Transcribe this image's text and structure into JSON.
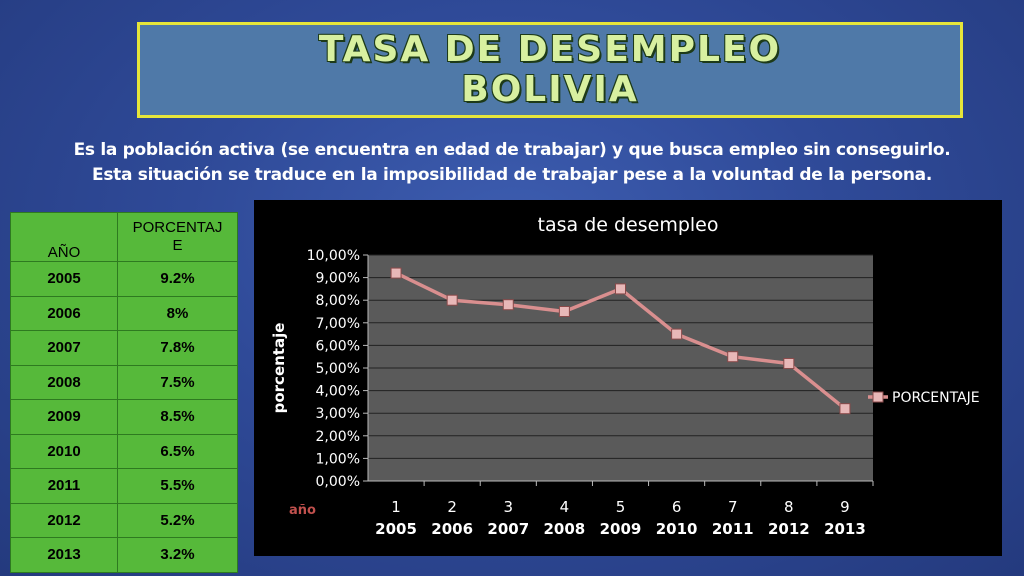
{
  "title": {
    "line1": "TASA DE DESEMPLEO",
    "line2": "BOLIVIA"
  },
  "description": {
    "line1": "Es la población activa (se encuentra en edad de trabajar) y que busca empleo sin conseguirlo.",
    "line2": "Esta situación se traduce en la imposibilidad de trabajar pese a la voluntad de la persona."
  },
  "table": {
    "header_year": "AÑO",
    "header_pct_line1": "PORCENTAJ",
    "header_pct_line2": "E",
    "rows": [
      {
        "year": "2005",
        "pct": "9.2%"
      },
      {
        "year": "2006",
        "pct": "8%"
      },
      {
        "year": "2007",
        "pct": "7.8%"
      },
      {
        "year": "2008",
        "pct": "7.5%"
      },
      {
        "year": "2009",
        "pct": "8.5%"
      },
      {
        "year": "2010",
        "pct": "6.5%"
      },
      {
        "year": "2011",
        "pct": "5.5%"
      },
      {
        "year": "2012",
        "pct": "5.2%"
      },
      {
        "year": "2013",
        "pct": "3.2%"
      }
    ]
  },
  "chart_data": {
    "type": "line",
    "title": "tasa de desempleo",
    "ylabel": "porcentaje",
    "xlabel": "año",
    "x": [
      "1",
      "2",
      "3",
      "4",
      "5",
      "6",
      "7",
      "8",
      "9"
    ],
    "x_sub": [
      "2005",
      "2006",
      "2007",
      "2008",
      "2009",
      "2010",
      "2011",
      "2012",
      "2013"
    ],
    "yticks": [
      "0,00%",
      "1,00%",
      "2,00%",
      "3,00%",
      "4,00%",
      "5,00%",
      "6,00%",
      "7,00%",
      "8,00%",
      "9,00%",
      "10,00%"
    ],
    "ylim": [
      0,
      10
    ],
    "series": [
      {
        "name": "PORCENTAJE",
        "values": [
          9.2,
          8.0,
          7.8,
          7.5,
          8.5,
          6.5,
          5.5,
          5.2,
          3.2
        ]
      }
    ],
    "legend_position": "right",
    "grid": true,
    "colors": {
      "line": "#d98f8f",
      "marker": "#e8b8b8",
      "plot_bg": "#5a5a5a",
      "xlabel": "#c0504d"
    }
  }
}
